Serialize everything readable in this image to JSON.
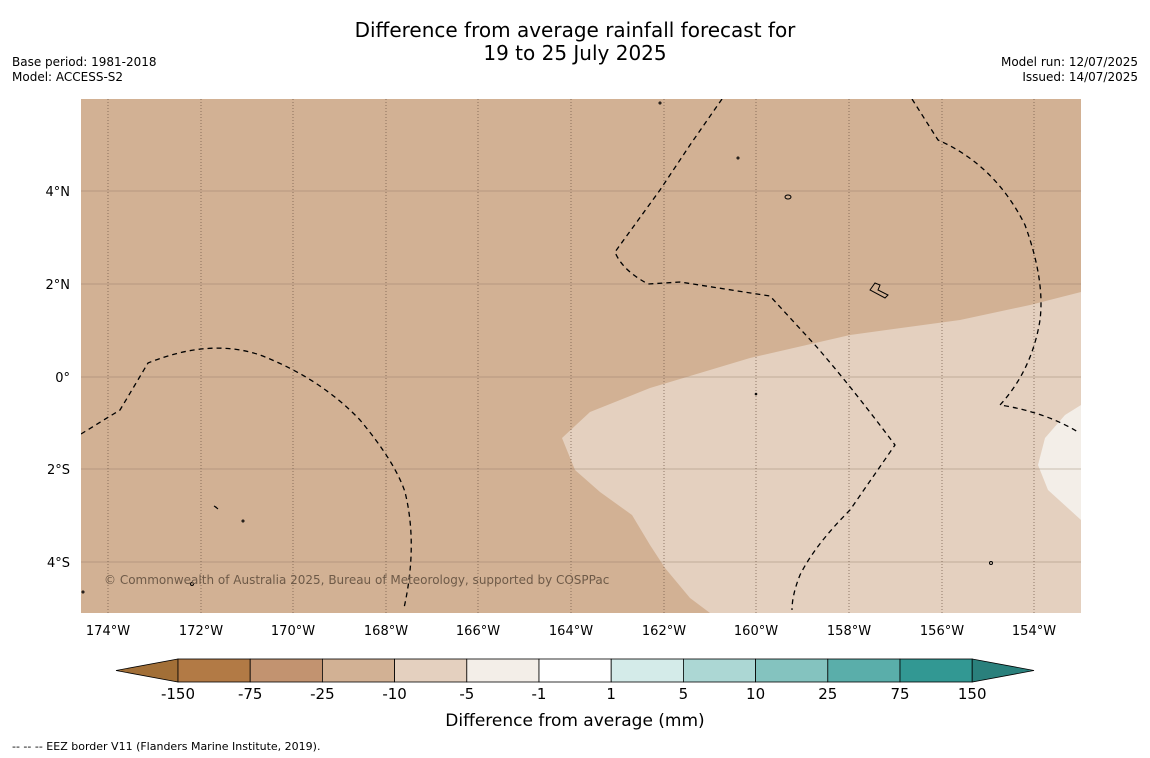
{
  "title": {
    "line1": "Difference from average rainfall forecast for",
    "line2": "19 to 25 July 2025"
  },
  "meta_left": {
    "base_period": "Base period: 1981-2018",
    "model": "Model: ACCESS-S2"
  },
  "meta_right": {
    "model_run": "Model run: 12/07/2025",
    "issued": "Issued: 14/07/2025"
  },
  "map": {
    "lat_labels": [
      "4°N",
      "2°N",
      "0°",
      "2°S",
      "4°S"
    ],
    "lon_labels": [
      "174°W",
      "172°W",
      "170°W",
      "168°W",
      "166°W",
      "164°W",
      "162°W",
      "160°W",
      "158°W",
      "156°W",
      "154°W"
    ],
    "copyright": "© Commonwealth of Australia 2025, Bureau of Meteorology, supported by COSPPac",
    "field_colors": {
      "minus25_to_minus10": "#d2b194",
      "minus10_to_minus5": "#e4d0bf",
      "minus5_to_minus1": "#f3eee8"
    }
  },
  "colorbar": {
    "ticks": [
      "-150",
      "-75",
      "-25",
      "-10",
      "-5",
      "-1",
      "1",
      "5",
      "10",
      "25",
      "75",
      "150"
    ],
    "colors": [
      "#a26f37",
      "#b27a45",
      "#c29370",
      "#d2b194",
      "#e4d0bf",
      "#f3eee8",
      "#ffffff",
      "#d4ebe9",
      "#acd7d4",
      "#84c3bf",
      "#5aaeaa",
      "#329893",
      "#2a807c"
    ],
    "label": "Difference from average (mm)"
  },
  "footer": {
    "eez_note": "--  --  -- EEZ border V11 (Flanders Marine Institute, 2019)."
  }
}
